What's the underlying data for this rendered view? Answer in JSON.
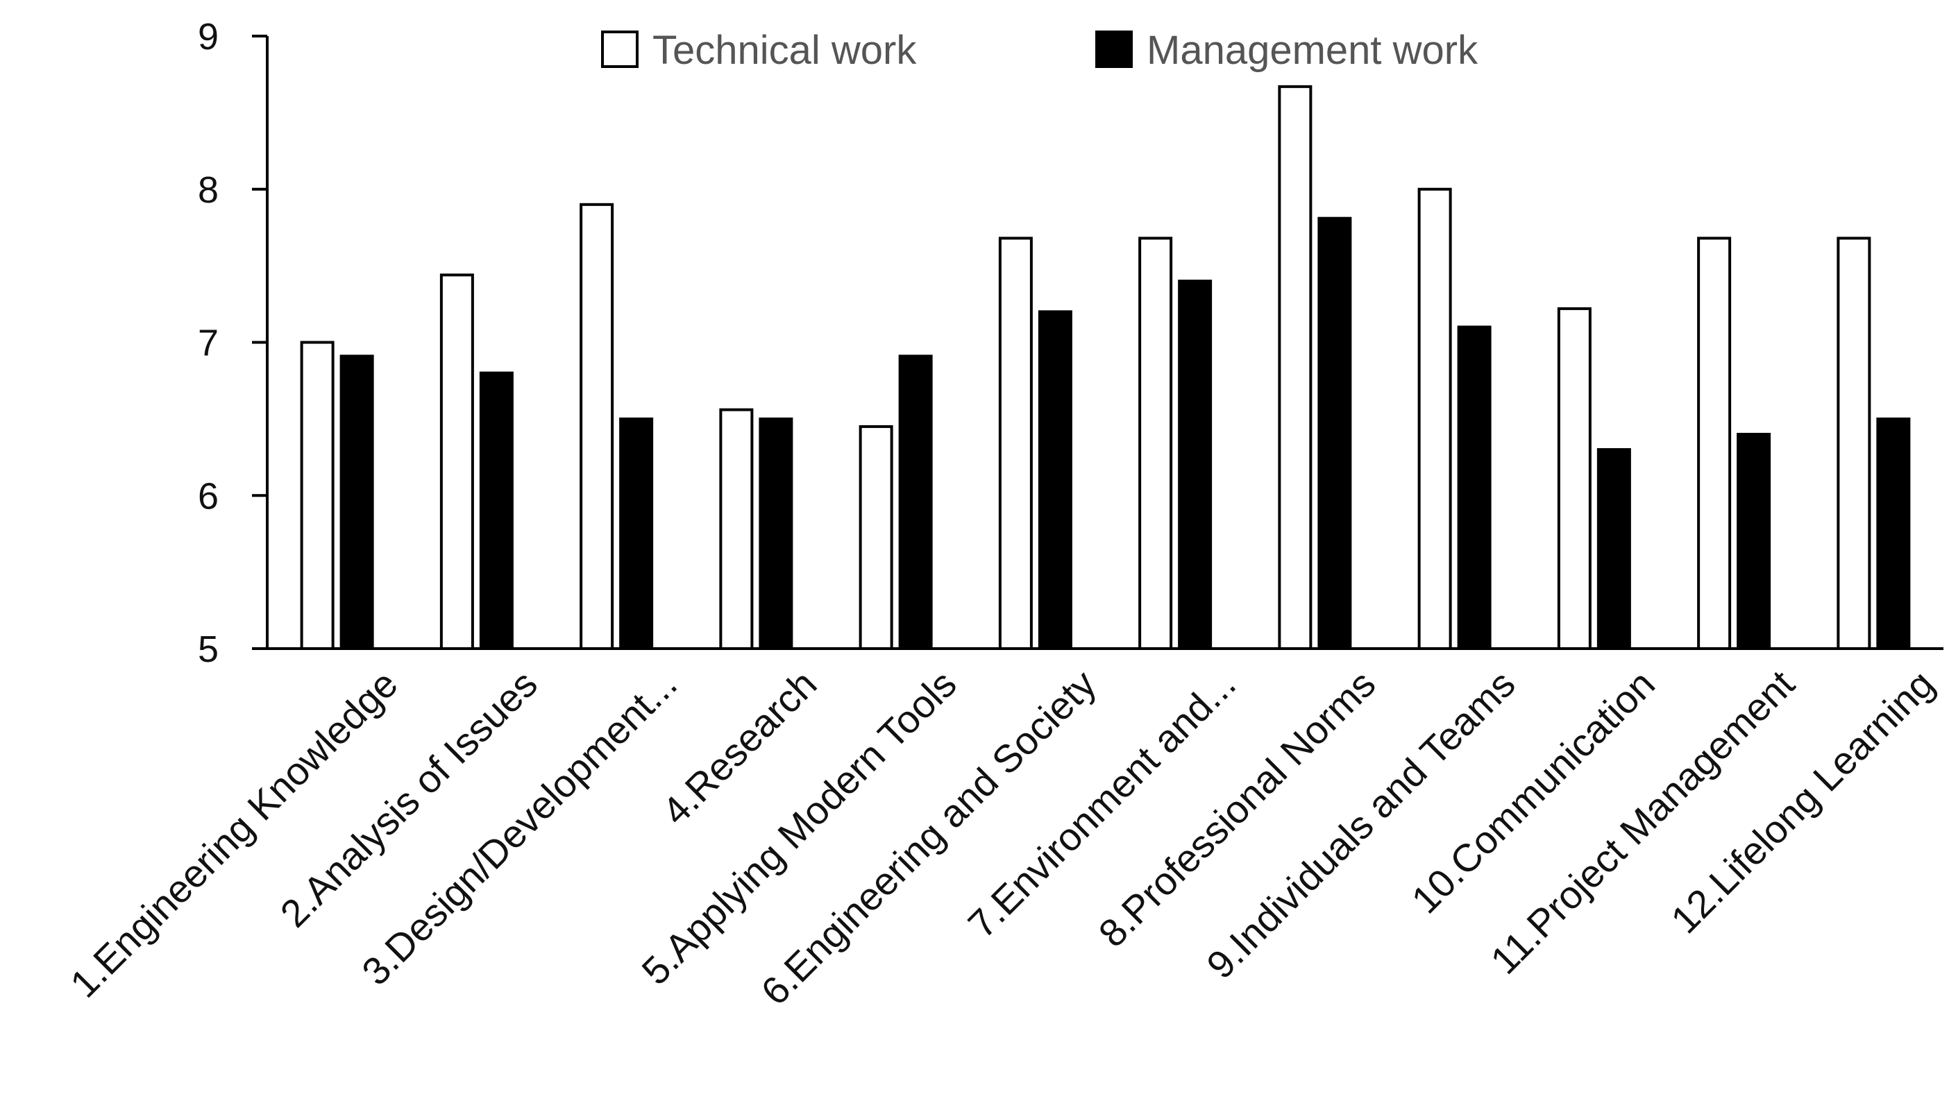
{
  "chart_data": {
    "type": "bar",
    "categories": [
      "1.Engineering Knowledge",
      "2.Analysis of Issues",
      "3.Design/Development...",
      "4.Research",
      "5.Applying Modern Tools",
      "6.Engineering and Society",
      "7.Environment and...",
      "8.Professional Norms",
      "9.Individuals and Teams",
      "10.Communication",
      "11.Project Management",
      "12.Lifelong Learning"
    ],
    "series": [
      {
        "name": "Technical work",
        "color": "#ffffff",
        "values": [
          7.0,
          7.44,
          7.9,
          6.56,
          6.45,
          7.68,
          7.68,
          8.67,
          8.0,
          7.22,
          7.68,
          7.68
        ]
      },
      {
        "name": "Management work",
        "color": "#000000",
        "values": [
          6.91,
          6.8,
          6.5,
          6.5,
          6.91,
          7.2,
          7.4,
          7.81,
          7.1,
          6.3,
          6.4,
          6.5
        ]
      }
    ],
    "title": "",
    "xlabel": "",
    "ylabel": "",
    "ylim": [
      5,
      9
    ],
    "yticks": [
      "5",
      "6",
      "7",
      "8",
      "9"
    ],
    "grid": false,
    "legend_position": "top-center"
  }
}
